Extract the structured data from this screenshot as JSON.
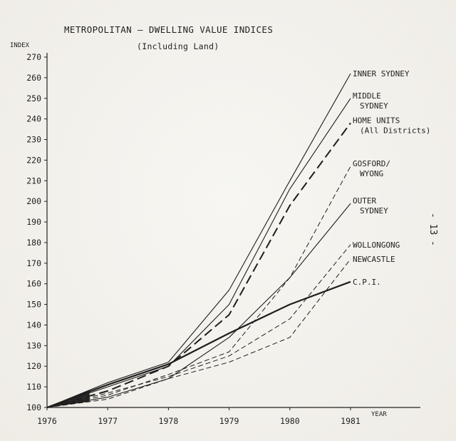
{
  "chart_data": {
    "type": "line",
    "title": "METROPOLITAN — DWELLING VALUE INDICES",
    "subtitle": "(Including Land)",
    "ylabel": "INDEX",
    "xlabel": "YEAR",
    "x": [
      1976,
      1977,
      1978,
      1979,
      1980,
      1981
    ],
    "x_ticks": [
      "1976",
      "1977",
      "1978",
      "1979",
      "1980",
      "1981"
    ],
    "y_ticks": [
      100,
      110,
      120,
      130,
      140,
      150,
      160,
      170,
      180,
      190,
      200,
      210,
      220,
      230,
      240,
      250,
      260,
      270
    ],
    "ylim": [
      100,
      270
    ],
    "xlim": [
      1976,
      1981
    ],
    "grid": false,
    "series": [
      {
        "name": "INNER SYDNEY",
        "style": "solid",
        "values": [
          100,
          112,
          122,
          157,
          210,
          262
        ]
      },
      {
        "name": "MIDDLE SYDNEY",
        "style": "solid",
        "values": [
          100,
          110,
          120,
          150,
          206,
          250
        ]
      },
      {
        "name": "HOME UNITS (All Districts)",
        "style": "dashed-heavy",
        "values": [
          100,
          108,
          120,
          145,
          198,
          238
        ]
      },
      {
        "name": "GOSFORD/ WYONG",
        "style": "dashed",
        "values": [
          100,
          106,
          116,
          127,
          163,
          217
        ]
      },
      {
        "name": "OUTER SYDNEY",
        "style": "solid",
        "values": [
          100,
          105,
          114,
          134,
          163,
          199
        ]
      },
      {
        "name": "WOLLONGONG",
        "style": "dashed",
        "values": [
          100,
          107,
          115,
          125,
          143,
          179
        ]
      },
      {
        "name": "NEWCASTLE",
        "style": "dashed",
        "values": [
          100,
          104,
          114,
          122,
          134,
          172
        ]
      },
      {
        "name": "C.P.I.",
        "style": "solid-bold",
        "values": [
          100,
          111,
          121,
          136,
          150,
          161
        ]
      }
    ],
    "series_labels": [
      {
        "lines": [
          "INNER SYDNEY"
        ]
      },
      {
        "lines": [
          "MIDDLE",
          "SYDNEY"
        ]
      },
      {
        "lines": [
          "HOME UNITS",
          "(All Districts)"
        ]
      },
      {
        "lines": [
          "GOSFORD/",
          "WYONG"
        ]
      },
      {
        "lines": [
          "OUTER",
          "SYDNEY"
        ]
      },
      {
        "lines": [
          "WOLLONGONG"
        ]
      },
      {
        "lines": [
          "NEWCASTLE"
        ]
      },
      {
        "lines": [
          "C.P.I."
        ]
      }
    ]
  },
  "page_number": "- 13 -"
}
